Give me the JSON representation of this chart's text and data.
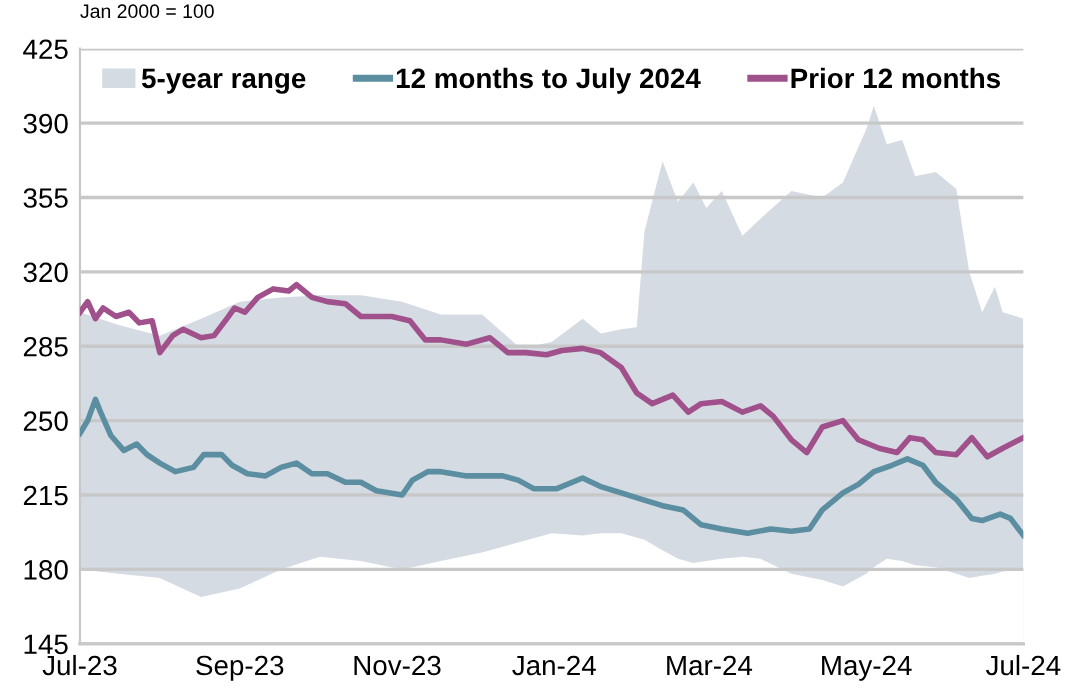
{
  "chart_data": {
    "type": "line",
    "ylabel": "Jan 2000 = 100",
    "ylim": [
      145,
      425
    ],
    "yticks": [
      145,
      180,
      215,
      250,
      285,
      320,
      355,
      390,
      425
    ],
    "xlim": [
      "2023-07-01",
      "2024-07-01"
    ],
    "xticks": [
      {
        "value": "2023-07-01",
        "label": "Jul-23"
      },
      {
        "value": "2023-09-01",
        "label": "Sep-23"
      },
      {
        "value": "2023-11-01",
        "label": "Nov-23"
      },
      {
        "value": "2024-01-01",
        "label": "Jan-24"
      },
      {
        "value": "2024-03-01",
        "label": "Mar-24"
      },
      {
        "value": "2024-05-01",
        "label": "May-24"
      },
      {
        "value": "2024-07-01",
        "label": "Jul-24"
      }
    ],
    "grid": "y",
    "legend": "top",
    "line_style": "solid",
    "marker": "none",
    "series": [
      {
        "name": "5-year range",
        "type": "area",
        "color": "#d5dbe3",
        "x": [
          "2023-07-01",
          "2023-07-16",
          "2023-08-01",
          "2023-08-17",
          "2023-09-01",
          "2023-09-17",
          "2023-10-02",
          "2023-10-18",
          "2023-11-03",
          "2023-11-18",
          "2023-12-04",
          "2023-12-19",
          "2023-12-31",
          "2024-01-12",
          "2024-01-19",
          "2024-01-27",
          "2024-02-02",
          "2024-02-05",
          "2024-02-12",
          "2024-02-18",
          "2024-02-24",
          "2024-02-29",
          "2024-03-06",
          "2024-03-14",
          "2024-03-21",
          "2024-04-02",
          "2024-04-14",
          "2024-04-22",
          "2024-05-01",
          "2024-05-04",
          "2024-05-09",
          "2024-05-15",
          "2024-05-20",
          "2024-05-28",
          "2024-06-05",
          "2024-06-10",
          "2024-06-15",
          "2024-06-20",
          "2024-06-23",
          "2024-07-01"
        ],
        "values": [
          301,
          295,
          290,
          298,
          306,
          308,
          309,
          309,
          306,
          300,
          300,
          284,
          287,
          298,
          291,
          293,
          294,
          339,
          372,
          353,
          362,
          350,
          358,
          337,
          345,
          358,
          355,
          362,
          387,
          398,
          380,
          382,
          365,
          367,
          359,
          320,
          301,
          313,
          301,
          298
        ]
      },
      {
        "type": "area",
        "color": "#ffffff",
        "x": [
          "2023-07-01",
          "2023-07-16",
          "2023-08-01",
          "2023-08-17",
          "2023-09-01",
          "2023-09-17",
          "2023-10-02",
          "2023-10-18",
          "2023-11-03",
          "2023-11-18",
          "2023-12-04",
          "2023-12-19",
          "2023-12-31",
          "2024-01-12",
          "2024-01-19",
          "2024-01-27",
          "2024-02-02",
          "2024-02-05",
          "2024-02-12",
          "2024-02-18",
          "2024-02-24",
          "2024-02-29",
          "2024-03-06",
          "2024-03-14",
          "2024-03-21",
          "2024-04-02",
          "2024-04-14",
          "2024-04-22",
          "2024-05-01",
          "2024-05-04",
          "2024-05-09",
          "2024-05-15",
          "2024-05-20",
          "2024-05-28",
          "2024-06-05",
          "2024-06-10",
          "2024-06-15",
          "2024-06-20",
          "2024-06-23",
          "2024-07-01"
        ],
        "values": [
          180,
          178,
          176,
          167,
          171,
          180,
          186,
          184,
          180,
          184,
          188,
          193,
          197,
          196,
          197,
          197,
          195,
          194,
          189,
          185,
          183,
          184,
          185,
          186,
          185,
          178,
          175,
          172,
          178,
          181,
          185,
          184,
          182,
          181,
          178,
          176,
          177,
          178,
          179,
          180
        ]
      },
      {
        "name": "12 months to July 2024",
        "color": "#5b8ea1",
        "x": [
          "2023-07-01",
          "2023-07-04",
          "2023-07-07",
          "2023-07-09",
          "2023-07-13",
          "2023-07-18",
          "2023-07-23",
          "2023-07-27",
          "2023-08-01",
          "2023-08-07",
          "2023-08-14",
          "2023-08-18",
          "2023-08-25",
          "2023-08-29",
          "2023-09-04",
          "2023-09-11",
          "2023-09-17",
          "2023-09-23",
          "2023-09-29",
          "2023-10-05",
          "2023-10-12",
          "2023-10-18",
          "2023-10-24",
          "2023-11-03",
          "2023-11-07",
          "2023-11-13",
          "2023-11-18",
          "2023-11-28",
          "2023-12-12",
          "2023-12-18",
          "2023-12-24",
          "2023-12-29",
          "2024-01-02",
          "2024-01-12",
          "2024-01-19",
          "2024-01-27",
          "2024-02-04",
          "2024-02-12",
          "2024-02-20",
          "2024-02-27",
          "2024-03-06",
          "2024-03-16",
          "2024-03-25",
          "2024-04-02",
          "2024-04-09",
          "2024-04-14",
          "2024-04-22",
          "2024-04-28",
          "2024-05-04",
          "2024-05-11",
          "2024-05-17",
          "2024-05-23",
          "2024-05-28",
          "2024-06-05",
          "2024-06-11",
          "2024-06-15",
          "2024-06-22",
          "2024-06-26",
          "2024-07-01"
        ],
        "values": [
          244,
          250,
          260,
          254,
          243,
          236,
          239,
          234,
          230,
          226,
          228,
          234,
          234,
          229,
          225,
          224,
          228,
          230,
          225,
          225,
          221,
          221,
          217,
          215,
          222,
          226,
          226,
          224,
          224,
          222,
          218,
          218,
          218,
          223,
          219,
          216,
          213,
          210,
          208,
          201,
          199,
          197,
          199,
          198,
          199,
          208,
          216,
          220,
          226,
          229,
          232,
          229,
          221,
          213,
          204,
          203,
          206,
          204,
          196
        ]
      },
      {
        "name": "Prior 12 months",
        "color": "#a0508a",
        "x": [
          "2023-07-01",
          "2023-07-04",
          "2023-07-07",
          "2023-07-10",
          "2023-07-15",
          "2023-07-20",
          "2023-07-24",
          "2023-07-29",
          "2023-08-01",
          "2023-08-06",
          "2023-08-10",
          "2023-08-17",
          "2023-08-22",
          "2023-08-27",
          "2023-08-30",
          "2023-09-03",
          "2023-09-08",
          "2023-09-14",
          "2023-09-20",
          "2023-09-23",
          "2023-09-29",
          "2023-10-05",
          "2023-10-12",
          "2023-10-18",
          "2023-10-24",
          "2023-10-30",
          "2023-11-06",
          "2023-11-12",
          "2023-11-18",
          "2023-11-28",
          "2023-12-07",
          "2023-12-14",
          "2023-12-21",
          "2023-12-29",
          "2024-01-04",
          "2024-01-12",
          "2024-01-19",
          "2024-01-27",
          "2024-02-02",
          "2024-02-08",
          "2024-02-16",
          "2024-02-22",
          "2024-02-27",
          "2024-03-06",
          "2024-03-14",
          "2024-03-21",
          "2024-03-26",
          "2024-04-02",
          "2024-04-08",
          "2024-04-14",
          "2024-04-22",
          "2024-04-28",
          "2024-05-06",
          "2024-05-13",
          "2024-05-18",
          "2024-05-23",
          "2024-05-28",
          "2024-06-05",
          "2024-06-11",
          "2024-06-17",
          "2024-06-23",
          "2024-07-01"
        ],
        "values": [
          301,
          306,
          298,
          303,
          299,
          301,
          296,
          297,
          282,
          290,
          293,
          289,
          290,
          298,
          303,
          301,
          308,
          312,
          311,
          314,
          308,
          306,
          305,
          299,
          299,
          299,
          297,
          288,
          288,
          286,
          289,
          282,
          282,
          281,
          283,
          284,
          282,
          275,
          263,
          258,
          262,
          254,
          258,
          259,
          254,
          257,
          252,
          241,
          235,
          247,
          250,
          241,
          237,
          235,
          242,
          241,
          235,
          234,
          242,
          233,
          237,
          242
        ]
      }
    ]
  }
}
